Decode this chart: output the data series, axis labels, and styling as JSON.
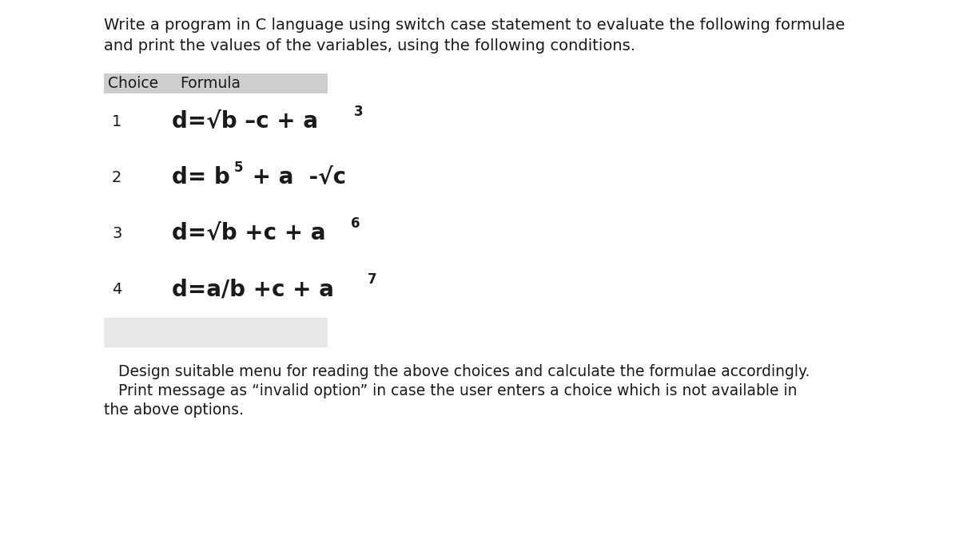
{
  "title_line1": "Write a program in C language using switch case statement to evaluate the following formulae",
  "title_line2": "and print the values of the variables, using the following conditions.",
  "header_choice": "Choice",
  "header_formula": "Formula",
  "choices": [
    "1",
    "2",
    "3",
    "4"
  ],
  "formula_parts": [
    {
      "main": "d=√b –c + a",
      "sup": "3"
    },
    {
      "pre": "d= b",
      "sup": "5",
      "post": " + a  -√c"
    },
    {
      "main": "d=√b +c + a",
      "sup": "6"
    },
    {
      "main": "d=a/b +c + a",
      "sup": "7"
    }
  ],
  "footer_line1": "   Design suitable menu for reading the above choices and calculate the formulae accordingly.",
  "footer_line2": "   Print message as “invalid option” in case the user enters a choice which is not available in",
  "footer_line3": "the above options.",
  "table_bg": "#cecece",
  "footer_box_bg": "#e8e8e8",
  "bg_color": "#ffffff",
  "text_color": "#1a1a1a",
  "title_fontsize": 14,
  "header_fontsize": 13.5,
  "formula_fontsize": 20,
  "sup_fontsize": 12,
  "choice_fontsize": 14,
  "footer_fontsize": 13.5
}
